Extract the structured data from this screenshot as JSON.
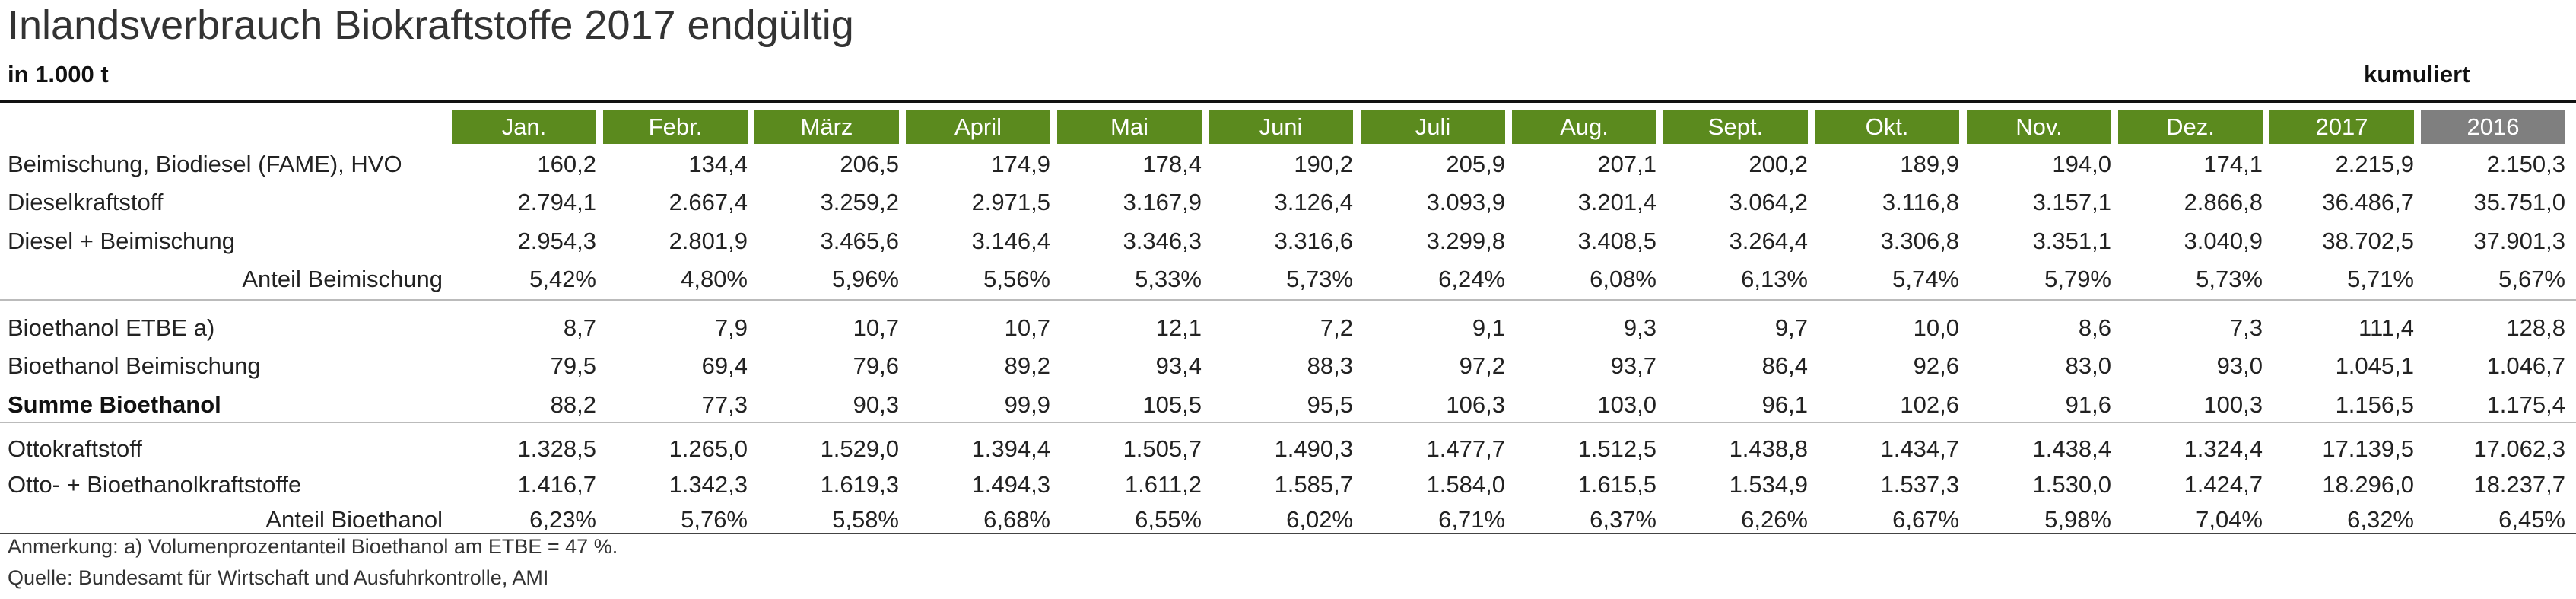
{
  "title": "Inlandsverbrauch Biokraftstoffe 2017 endgültig",
  "unit": "in 1.000 t",
  "cumulative_label": "kumuliert",
  "colors": {
    "month_header": "#5b8a1e",
    "prev_year_header": "#7f7f7f"
  },
  "columns": [
    "Jan.",
    "Febr.",
    "März",
    "April",
    "Mai",
    "Juni",
    "Juli",
    "Aug.",
    "Sept.",
    "Okt.",
    "Nov.",
    "Dez.",
    "2017",
    "2016"
  ],
  "rows": [
    {
      "label": "Beimischung, Biodiesel (FAME), HVO",
      "style": "normal",
      "values": [
        "160,2",
        "134,4",
        "206,5",
        "174,9",
        "178,4",
        "190,2",
        "205,9",
        "207,1",
        "200,2",
        "189,9",
        "194,0",
        "174,1",
        "2.215,9",
        "2.150,3"
      ]
    },
    {
      "label": "Dieselkraftstoff",
      "style": "normal",
      "values": [
        "2.794,1",
        "2.667,4",
        "3.259,2",
        "2.971,5",
        "3.167,9",
        "3.126,4",
        "3.093,9",
        "3.201,4",
        "3.064,2",
        "3.116,8",
        "3.157,1",
        "2.866,8",
        "36.486,7",
        "35.751,0"
      ]
    },
    {
      "label": "Diesel + Beimischung",
      "style": "normal",
      "values": [
        "2.954,3",
        "2.801,9",
        "3.465,6",
        "3.146,4",
        "3.346,3",
        "3.316,6",
        "3.299,8",
        "3.408,5",
        "3.264,4",
        "3.306,8",
        "3.351,1",
        "3.040,9",
        "38.702,5",
        "37.901,3"
      ]
    },
    {
      "label": "Anteil Beimischung",
      "style": "indent",
      "values": [
        "5,42%",
        "4,80%",
        "5,96%",
        "5,56%",
        "5,33%",
        "5,73%",
        "6,24%",
        "6,08%",
        "6,13%",
        "5,74%",
        "5,79%",
        "5,73%",
        "5,71%",
        "5,67%"
      ]
    },
    {
      "label": "Bioethanol ETBE a)",
      "style": "normal",
      "values": [
        "8,7",
        "7,9",
        "10,7",
        "10,7",
        "12,1",
        "7,2",
        "9,1",
        "9,3",
        "9,7",
        "10,0",
        "8,6",
        "7,3",
        "111,4",
        "128,8"
      ]
    },
    {
      "label": "Bioethanol Beimischung",
      "style": "normal",
      "values": [
        "79,5",
        "69,4",
        "79,6",
        "89,2",
        "93,4",
        "88,3",
        "97,2",
        "93,7",
        "86,4",
        "92,6",
        "83,0",
        "93,0",
        "1.045,1",
        "1.046,7"
      ]
    },
    {
      "label": "Summe Bioethanol",
      "style": "bold",
      "values": [
        "88,2",
        "77,3",
        "90,3",
        "99,9",
        "105,5",
        "95,5",
        "106,3",
        "103,0",
        "96,1",
        "102,6",
        "91,6",
        "100,3",
        "1.156,5",
        "1.175,4"
      ]
    },
    {
      "label": "Ottokraftstoff",
      "style": "normal",
      "values": [
        "1.328,5",
        "1.265,0",
        "1.529,0",
        "1.394,4",
        "1.505,7",
        "1.490,3",
        "1.477,7",
        "1.512,5",
        "1.438,8",
        "1.434,7",
        "1.438,4",
        "1.324,4",
        "17.139,5",
        "17.062,3"
      ]
    },
    {
      "label": "Otto- + Bioethanolkraftstoffe",
      "style": "normal",
      "values": [
        "1.416,7",
        "1.342,3",
        "1.619,3",
        "1.494,3",
        "1.611,2",
        "1.585,7",
        "1.584,0",
        "1.615,5",
        "1.534,9",
        "1.537,3",
        "1.530,0",
        "1.424,7",
        "18.296,0",
        "18.237,7"
      ]
    },
    {
      "label": "Anteil Bioethanol",
      "style": "indent",
      "values": [
        "6,23%",
        "5,76%",
        "5,58%",
        "6,68%",
        "6,55%",
        "6,02%",
        "6,71%",
        "6,37%",
        "6,26%",
        "6,67%",
        "5,98%",
        "7,04%",
        "6,32%",
        "6,45%"
      ]
    }
  ],
  "notes": [
    "Anmerkung: a) Volumenprozentanteil Bioethanol am ETBE = 47 %.",
    "Quelle: Bundesamt für Wirtschaft und Ausfuhrkontrolle, AMI"
  ]
}
